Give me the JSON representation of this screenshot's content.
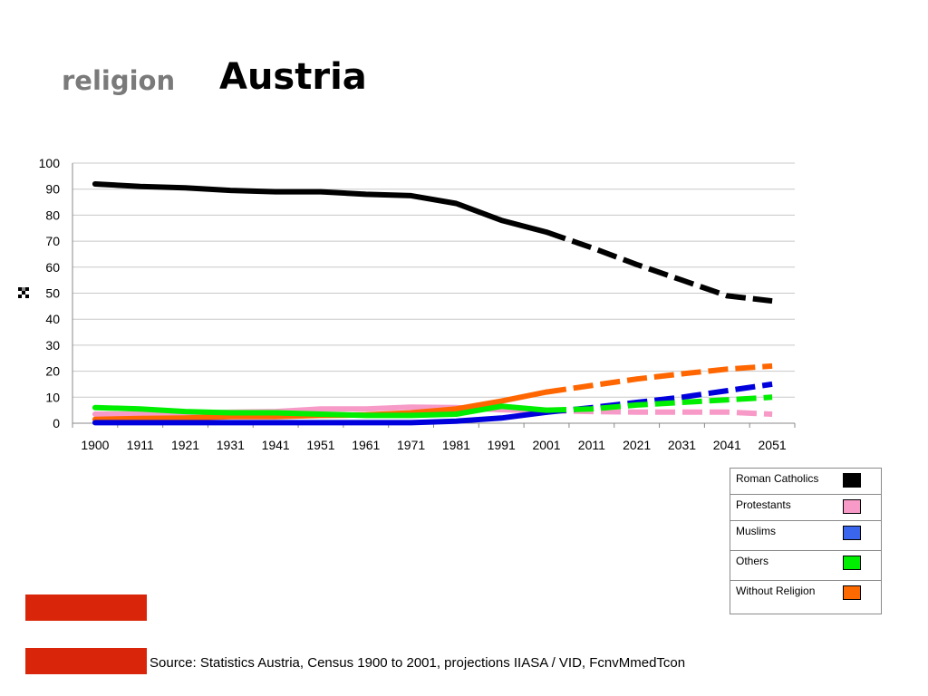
{
  "header": {
    "subtitle": "religion",
    "title": "Austria"
  },
  "source_text": "Source: Statistics Austria, Census 1900 to 2001, projections IIASA / VID, FcnvMmedTcon",
  "flag_color": "#d9260b",
  "chart_data": {
    "type": "line",
    "x": [
      "1900",
      "1911",
      "1921",
      "1931",
      "1941",
      "1951",
      "1961",
      "1971",
      "1981",
      "1991",
      "2001",
      "2011",
      "2021",
      "2031",
      "2041",
      "2051"
    ],
    "ylim": [
      0,
      100
    ],
    "yticks": [
      0,
      10,
      20,
      30,
      40,
      50,
      60,
      70,
      80,
      90,
      100
    ],
    "grid": true,
    "legend_position": "bottom-right",
    "projection_start": "2001",
    "series": [
      {
        "name": "Roman Catholics",
        "color": "#000000",
        "values": [
          92,
          91,
          90.5,
          89.5,
          89,
          89,
          88,
          87.5,
          84.5,
          78,
          73.5,
          67.5,
          61,
          55,
          49,
          47
        ]
      },
      {
        "name": "Protestants",
        "color": "#f79ac8",
        "values": [
          3.5,
          3.5,
          3.8,
          4.2,
          4.5,
          5.5,
          5.5,
          6.2,
          6,
          5.2,
          4.8,
          4.5,
          4.3,
          4.3,
          4.3,
          3.5
        ]
      },
      {
        "name": "Muslims",
        "color": "#0000dd",
        "values": [
          0.2,
          0.2,
          0.2,
          0.2,
          0.2,
          0.2,
          0.2,
          0.2,
          0.8,
          2,
          4.2,
          6,
          8,
          10,
          12.5,
          15
        ]
      },
      {
        "name": "Others",
        "color": "#00ee00",
        "values": [
          6,
          5.5,
          4.5,
          4,
          4,
          3.5,
          3,
          3,
          3.5,
          6.5,
          5,
          5.5,
          7,
          8,
          9,
          10
        ]
      },
      {
        "name": "Without Religion",
        "color": "#ff6600",
        "values": [
          1.5,
          1.8,
          2,
          2.5,
          2.5,
          3,
          3.2,
          4,
          5.5,
          8.5,
          12,
          14.5,
          17,
          19,
          20.8,
          22
        ]
      }
    ]
  },
  "legend": [
    {
      "label": "Roman Catholics",
      "color": "#000000"
    },
    {
      "label": "Protestants",
      "color": "#f79ac8"
    },
    {
      "label": "Muslims",
      "color": "#3a66ee"
    },
    {
      "label": "Others",
      "color": "#00ee00"
    },
    {
      "label": "Without Religion",
      "color": "#ff6a00"
    }
  ],
  "axis_marker_icon": "checker-icon"
}
